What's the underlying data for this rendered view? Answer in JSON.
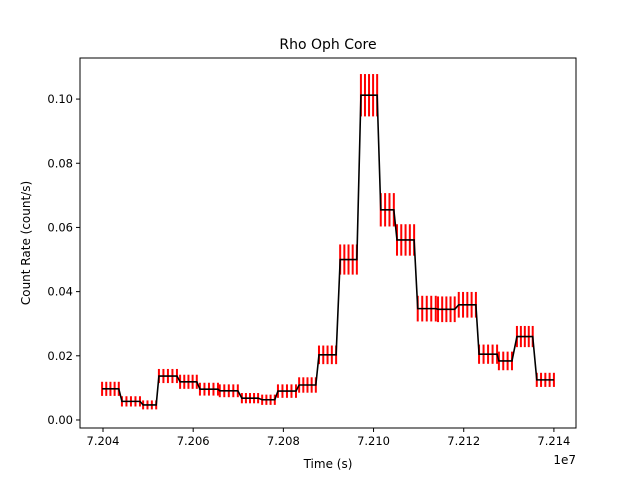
{
  "chart_data": {
    "type": "line",
    "title": "Rho Oph Core",
    "xlabel": "Time (s)",
    "ylabel": "Count Rate (count/s)",
    "x_offset_label": "1e7",
    "xlim": [
      7.20349,
      7.21449
    ],
    "ylim": [
      -0.0025,
      0.1128
    ],
    "xticks": [
      7.204,
      7.206,
      7.208,
      7.21,
      7.212,
      7.214
    ],
    "xtick_labels": [
      "7.204",
      "7.206",
      "7.208",
      "7.210",
      "7.212",
      "7.214"
    ],
    "yticks": [
      0.0,
      0.02,
      0.04,
      0.06,
      0.08,
      0.1
    ],
    "ytick_labels": [
      "0.00",
      "0.02",
      "0.04",
      "0.06",
      "0.08",
      "0.10"
    ],
    "grid": false,
    "line_color": "#000000",
    "errorbar_color": "#ff0000",
    "x_units_note": "x values in units of 1e7 s",
    "bins": [
      {
        "start": 7.20398,
        "end": 7.20435,
        "rate": 0.0097,
        "err": 0.0022,
        "n": 5
      },
      {
        "start": 7.20442,
        "end": 7.20482,
        "rate": 0.0058,
        "err": 0.0016,
        "n": 5
      },
      {
        "start": 7.20489,
        "end": 7.20518,
        "rate": 0.0047,
        "err": 0.0014,
        "n": 4
      },
      {
        "start": 7.20524,
        "end": 7.20564,
        "rate": 0.0137,
        "err": 0.0022,
        "n": 5
      },
      {
        "start": 7.20571,
        "end": 7.20608,
        "rate": 0.0119,
        "err": 0.0022,
        "n": 5
      },
      {
        "start": 7.20615,
        "end": 7.20655,
        "rate": 0.0096,
        "err": 0.002,
        "n": 5
      },
      {
        "start": 7.20659,
        "end": 7.20699,
        "rate": 0.0091,
        "err": 0.002,
        "n": 5
      },
      {
        "start": 7.20708,
        "end": 7.20744,
        "rate": 0.0068,
        "err": 0.0016,
        "n": 5
      },
      {
        "start": 7.20753,
        "end": 7.20781,
        "rate": 0.0063,
        "err": 0.0016,
        "n": 4
      },
      {
        "start": 7.20788,
        "end": 7.20828,
        "rate": 0.009,
        "err": 0.0021,
        "n": 5
      },
      {
        "start": 7.20835,
        "end": 7.20872,
        "rate": 0.0109,
        "err": 0.0024,
        "n": 5
      },
      {
        "start": 7.20879,
        "end": 7.20917,
        "rate": 0.0203,
        "err": 0.0029,
        "n": 5
      },
      {
        "start": 7.20926,
        "end": 7.20963,
        "rate": 0.05,
        "err": 0.0047,
        "n": 5
      },
      {
        "start": 7.20972,
        "end": 7.21008,
        "rate": 0.1012,
        "err": 0.0066,
        "n": 5
      },
      {
        "start": 7.21016,
        "end": 7.21045,
        "rate": 0.0655,
        "err": 0.0052,
        "n": 4
      },
      {
        "start": 7.21052,
        "end": 7.2109,
        "rate": 0.0561,
        "err": 0.0049,
        "n": 5
      },
      {
        "start": 7.21098,
        "end": 7.21138,
        "rate": 0.0347,
        "err": 0.004,
        "n": 5
      },
      {
        "start": 7.21143,
        "end": 7.2118,
        "rate": 0.0345,
        "err": 0.004,
        "n": 5
      },
      {
        "start": 7.21189,
        "end": 7.21227,
        "rate": 0.0359,
        "err": 0.004,
        "n": 5
      },
      {
        "start": 7.21234,
        "end": 7.21274,
        "rate": 0.0205,
        "err": 0.003,
        "n": 5
      },
      {
        "start": 7.21278,
        "end": 7.21307,
        "rate": 0.0184,
        "err": 0.0029,
        "n": 4
      },
      {
        "start": 7.21318,
        "end": 7.21353,
        "rate": 0.026,
        "err": 0.0033,
        "n": 5
      },
      {
        "start": 7.21362,
        "end": 7.214,
        "rate": 0.0125,
        "err": 0.0022,
        "n": 5
      }
    ]
  }
}
